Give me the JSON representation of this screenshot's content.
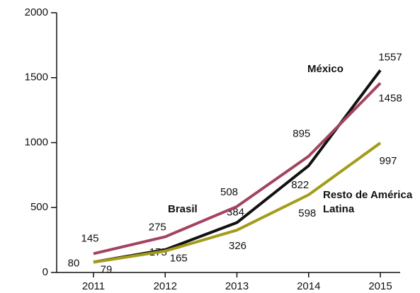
{
  "chart_data": {
    "type": "line",
    "x": [
      "2011",
      "2012",
      "2013",
      "2014",
      "2015"
    ],
    "series": [
      {
        "name": "México",
        "color": "#111111",
        "values": [
          80,
          175,
          384,
          822,
          1557
        ]
      },
      {
        "name": "Brasil",
        "color": "#a3445f",
        "values": [
          145,
          275,
          508,
          895,
          1458
        ]
      },
      {
        "name": "Resto de América Latina",
        "color": "#a39c1a",
        "values": [
          79,
          165,
          326,
          598,
          997
        ]
      }
    ],
    "ylim": [
      0,
      2000
    ],
    "yticks": [
      0,
      500,
      1000,
      1500,
      2000
    ]
  }
}
